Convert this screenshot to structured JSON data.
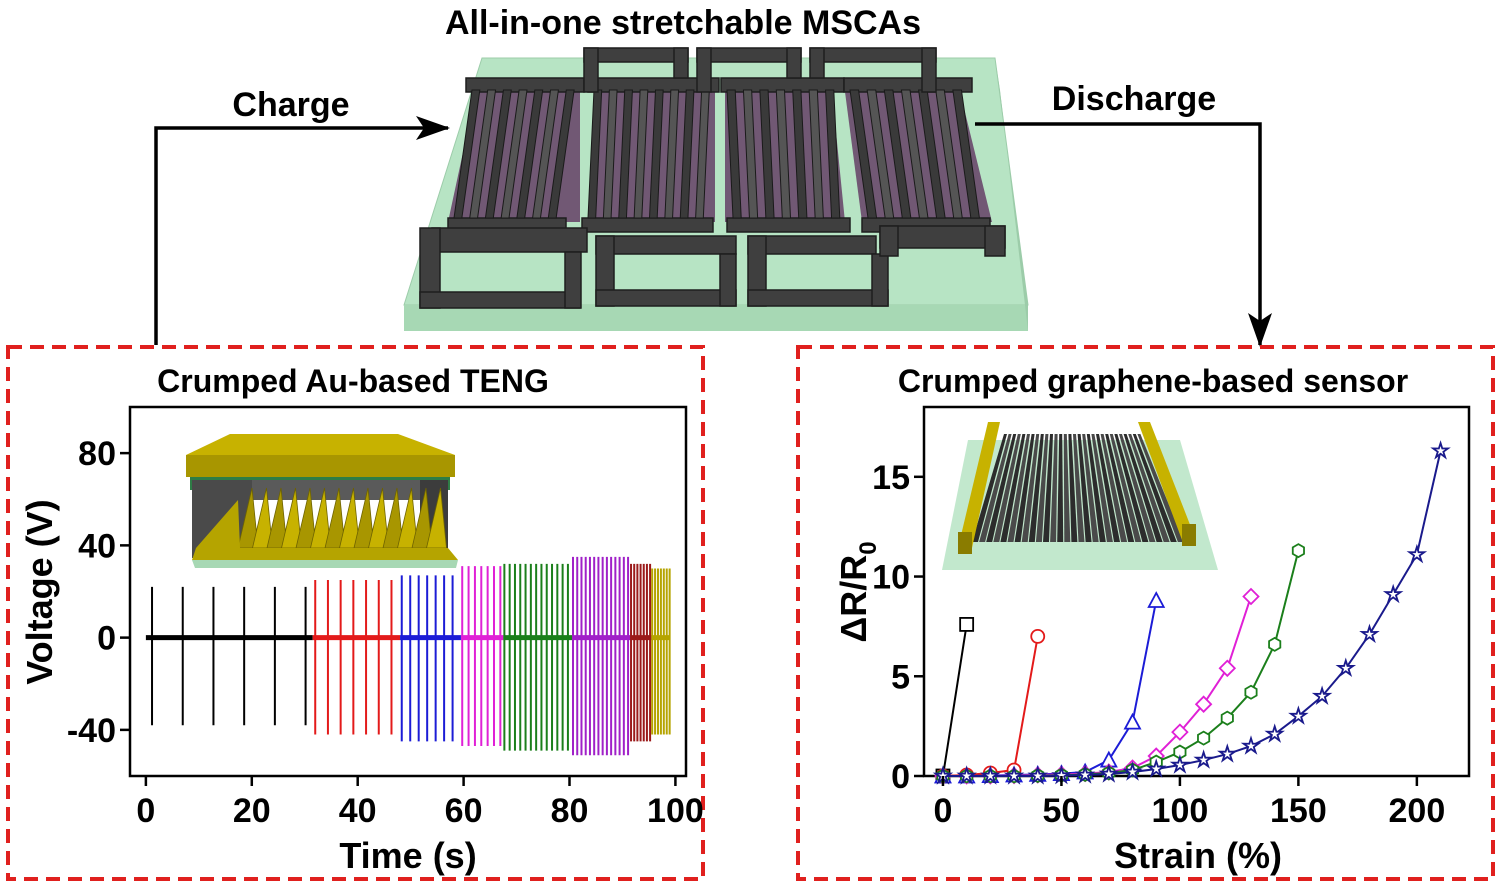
{
  "title": "All-in-one stretchable MSCAs",
  "flow": {
    "charge_label": "Charge",
    "discharge_label": "Discharge"
  },
  "colors": {
    "frame_red": "#e0201e",
    "substrate_green": "#b7e4c4",
    "electrode_dark": "#3f3f3f",
    "electrolyte_purple": "#5a2a5a",
    "gold": "#b5a400"
  },
  "teng": {
    "panel_title": "Crumped Au-based TENG",
    "x_axis": {
      "label": "Time (s)",
      "min": -3,
      "max": 102,
      "ticks": [
        0,
        20,
        40,
        60,
        80,
        100
      ]
    },
    "y_axis": {
      "label": "Voltage (V)",
      "min": -60,
      "max": 100,
      "ticks": [
        -40,
        0,
        40,
        80
      ]
    },
    "segments": [
      {
        "color": "#000000",
        "t_start": 0,
        "t_end": 31.5,
        "period": 5.8,
        "pos": 22,
        "neg": -38
      },
      {
        "color": "#e31a1a",
        "t_start": 31.5,
        "t_end": 48,
        "period": 2.4,
        "pos": 25,
        "neg": -42
      },
      {
        "color": "#1c1cd6",
        "t_start": 48,
        "t_end": 59.5,
        "period": 1.6,
        "pos": 27,
        "neg": -45
      },
      {
        "color": "#e020d6",
        "t_start": 59.5,
        "t_end": 67.5,
        "period": 1.2,
        "pos": 31,
        "neg": -47
      },
      {
        "color": "#1b7f1b",
        "t_start": 67.5,
        "t_end": 80.5,
        "period": 1.0,
        "pos": 32,
        "neg": -49
      },
      {
        "color": "#a020c8",
        "t_start": 80.5,
        "t_end": 91.5,
        "period": 0.8,
        "pos": 35,
        "neg": -51
      },
      {
        "color": "#9b1a1a",
        "t_start": 91.5,
        "t_end": 95.5,
        "period": 0.6,
        "pos": 32,
        "neg": -45
      },
      {
        "color": "#b5a400",
        "t_start": 95.5,
        "t_end": 99,
        "period": 0.55,
        "pos": 30,
        "neg": -42
      }
    ]
  },
  "sensor": {
    "panel_title": "Crumped graphene-based sensor",
    "x_axis": {
      "label": "Strain (%)",
      "min": -8,
      "max": 222,
      "ticks": [
        0,
        50,
        100,
        150,
        200
      ]
    },
    "y_axis": {
      "label": "ΔR/R",
      "label_sub": "0",
      "min": 0,
      "max": 18.5,
      "ticks": [
        0,
        5,
        10,
        15
      ]
    },
    "series": [
      {
        "name": "series-1",
        "color": "#000000",
        "marker": "square",
        "x": [
          0,
          10
        ],
        "y": [
          0,
          7.6
        ]
      },
      {
        "name": "series-2",
        "color": "#e31a1a",
        "marker": "circle",
        "x": [
          0,
          10,
          20,
          30,
          40
        ],
        "y": [
          0,
          0.05,
          0.15,
          0.3,
          7.0
        ]
      },
      {
        "name": "series-3",
        "color": "#1c1cd6",
        "marker": "triangle",
        "x": [
          0,
          10,
          20,
          30,
          40,
          50,
          60,
          70,
          80,
          90
        ],
        "y": [
          0,
          0,
          0.02,
          0.05,
          0.08,
          0.12,
          0.2,
          0.8,
          2.7,
          8.8
        ]
      },
      {
        "name": "series-4",
        "color": "#e020d6",
        "marker": "diamond",
        "x": [
          0,
          10,
          20,
          30,
          40,
          50,
          60,
          70,
          80,
          90,
          100,
          110,
          120,
          130
        ],
        "y": [
          0,
          0,
          0,
          0.02,
          0.05,
          0.08,
          0.12,
          0.2,
          0.4,
          1.0,
          2.2,
          3.6,
          5.4,
          9.0
        ]
      },
      {
        "name": "series-5",
        "color": "#1b7f1b",
        "marker": "hexagon",
        "x": [
          0,
          10,
          20,
          30,
          40,
          50,
          60,
          70,
          80,
          90,
          100,
          110,
          120,
          130,
          140,
          150
        ],
        "y": [
          0,
          0,
          0,
          0,
          0.02,
          0.04,
          0.08,
          0.15,
          0.3,
          0.7,
          1.2,
          1.9,
          2.9,
          4.2,
          6.6,
          11.3
        ]
      },
      {
        "name": "series-6",
        "color": "#1a1a8c",
        "marker": "star",
        "x": [
          0,
          10,
          20,
          30,
          40,
          50,
          60,
          70,
          80,
          90,
          100,
          110,
          120,
          130,
          140,
          150,
          160,
          170,
          180,
          190,
          200,
          210
        ],
        "y": [
          0,
          0,
          0,
          0,
          0,
          0.02,
          0.05,
          0.1,
          0.2,
          0.35,
          0.55,
          0.8,
          1.1,
          1.5,
          2.1,
          3.0,
          4.0,
          5.4,
          7.1,
          9.1,
          11.1,
          16.3
        ]
      }
    ]
  }
}
